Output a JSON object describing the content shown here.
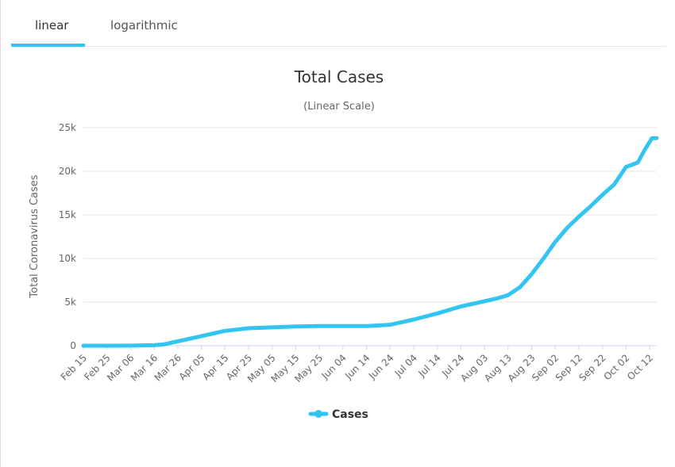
{
  "tabs": [
    {
      "label": "linear",
      "active": true
    },
    {
      "label": "logarithmic",
      "active": false
    }
  ],
  "colors": {
    "series": "#33c5f2",
    "grid": "#e6e6e6",
    "axis_text": "#666666",
    "title": "#333333"
  },
  "chart_data": {
    "type": "line",
    "title": "Total Cases",
    "subtitle": "(Linear Scale)",
    "xlabel": "",
    "ylabel": "Total Coronavirus Cases",
    "ylim": [
      0,
      25000
    ],
    "y_ticks": [
      0,
      5000,
      10000,
      15000,
      20000,
      25000
    ],
    "y_tick_labels": [
      "0",
      "5k",
      "10k",
      "15k",
      "20k",
      "25k"
    ],
    "x_tick_labels": [
      "Feb 15",
      "Feb 25",
      "Mar 06",
      "Mar 16",
      "Mar 26",
      "Apr 05",
      "Apr 15",
      "Apr 25",
      "May 05",
      "May 15",
      "May 25",
      "Jun 04",
      "Jun 14",
      "Jun 24",
      "Jul 04",
      "Jul 14",
      "Jul 24",
      "Aug 03",
      "Aug 13",
      "Aug 23",
      "Sep 02",
      "Sep 12",
      "Sep 22",
      "Oct 02",
      "Oct 12"
    ],
    "x_range": [
      "Feb 15",
      "Oct 15"
    ],
    "grid": true,
    "legend_position": "bottom-center",
    "series": [
      {
        "name": "Cases",
        "x": [
          "Feb 15",
          "Feb 25",
          "Mar 06",
          "Mar 16",
          "Mar 20",
          "Mar 26",
          "Apr 05",
          "Apr 15",
          "Apr 25",
          "May 05",
          "May 15",
          "May 25",
          "Jun 04",
          "Jun 14",
          "Jun 24",
          "Jul 04",
          "Jul 14",
          "Jul 24",
          "Aug 03",
          "Aug 08",
          "Aug 13",
          "Aug 18",
          "Aug 23",
          "Aug 28",
          "Sep 02",
          "Sep 07",
          "Sep 12",
          "Sep 17",
          "Sep 22",
          "Sep 27",
          "Oct 02",
          "Oct 07",
          "Oct 10",
          "Oct 13",
          "Oct 15"
        ],
        "values": [
          0,
          0,
          10,
          50,
          150,
          500,
          1100,
          1700,
          2000,
          2100,
          2200,
          2250,
          2250,
          2250,
          2400,
          3000,
          3700,
          4500,
          5100,
          5400,
          5800,
          6700,
          8200,
          10000,
          11900,
          13500,
          14800,
          16000,
          17300,
          18500,
          20500,
          21000,
          22500,
          23800,
          23800
        ]
      }
    ]
  }
}
